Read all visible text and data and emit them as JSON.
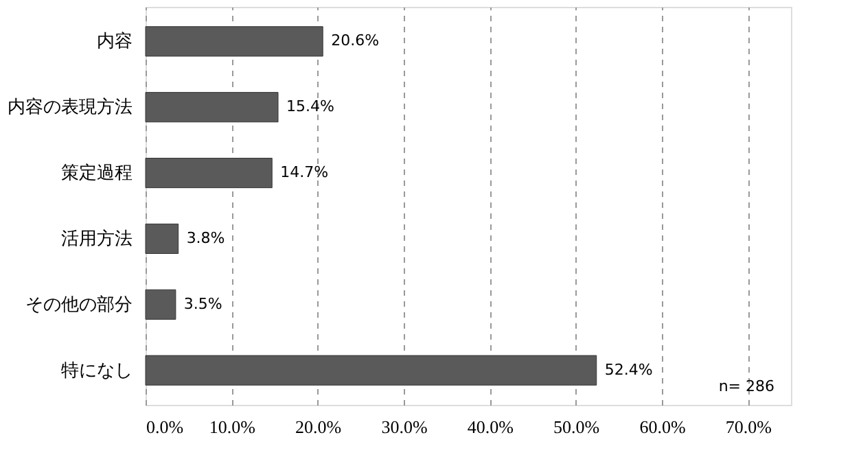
{
  "chart_data": {
    "type": "bar",
    "orientation": "horizontal",
    "categories": [
      "内容",
      "内容の表現方法",
      "策定過程",
      "活用方法",
      "その他の部分",
      "特になし"
    ],
    "values": [
      20.6,
      15.4,
      14.7,
      3.8,
      3.5,
      52.4
    ],
    "value_labels": [
      "20.6%",
      "15.4%",
      "14.7%",
      "3.8%",
      "3.5%",
      "52.4%"
    ],
    "color": "#5a5a5a",
    "xlim": [
      0,
      75
    ],
    "xticks": [
      {
        "value": 0,
        "label": "0.0%"
      },
      {
        "value": 10,
        "label": "10.0%"
      },
      {
        "value": 20,
        "label": "20.0%"
      },
      {
        "value": 30,
        "label": "30.0%"
      },
      {
        "value": 40,
        "label": "40.0%"
      },
      {
        "value": 50,
        "label": "50.0%"
      },
      {
        "value": 60,
        "label": "60.0%"
      },
      {
        "value": 70,
        "label": "70.0%"
      }
    ],
    "grid": "x",
    "annotations": [
      "n= 286"
    ]
  }
}
